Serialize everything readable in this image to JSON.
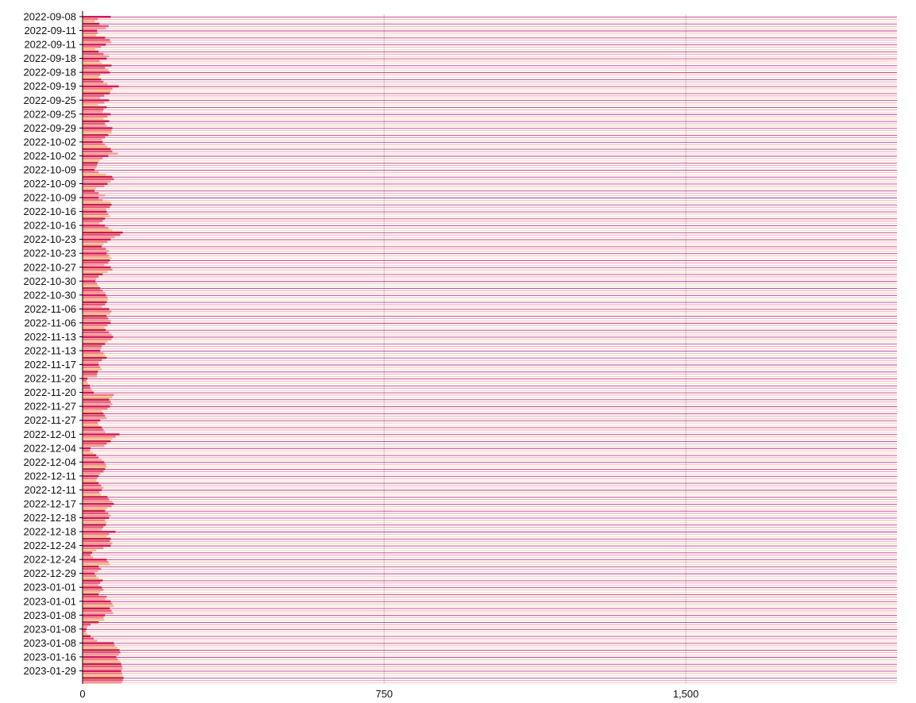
{
  "chart_data": {
    "type": "bar",
    "orientation": "horizontal",
    "title": "",
    "xlabel": "",
    "ylabel": "",
    "xlim": [
      0,
      2025
    ],
    "x_ticks": [
      {
        "value": 0,
        "label": "0"
      },
      {
        "value": 750,
        "label": "750"
      },
      {
        "value": 1500,
        "label": "1,500"
      }
    ],
    "y_tick_labels": [
      "2022-09-08",
      "2022-09-11",
      "2022-09-11",
      "2022-09-18",
      "2022-09-18",
      "2022-09-19",
      "2022-09-25",
      "2022-09-25",
      "2022-09-29",
      "2022-10-02",
      "2022-10-02",
      "2022-10-09",
      "2022-10-09",
      "2022-10-09",
      "2022-10-16",
      "2022-10-16",
      "2022-10-23",
      "2022-10-23",
      "2022-10-27",
      "2022-10-30",
      "2022-10-30",
      "2022-11-06",
      "2022-11-06",
      "2022-11-13",
      "2022-11-13",
      "2022-11-17",
      "2022-11-20",
      "2022-11-20",
      "2022-11-27",
      "2022-11-27",
      "2022-12-01",
      "2022-12-04",
      "2022-12-04",
      "2022-12-11",
      "2022-12-11",
      "2022-12-17",
      "2022-12-18",
      "2022-12-18",
      "2022-12-24",
      "2022-12-24",
      "2022-12-29",
      "2023-01-01",
      "2023-01-01",
      "2023-01-08",
      "2023-01-08",
      "2023-01-08",
      "2023-01-16",
      "2023-01-29"
    ],
    "rows_per_label": 6,
    "values": [
      70,
      38,
      30,
      42,
      65,
      58,
      36,
      38,
      34,
      56,
      68,
      72,
      58,
      46,
      32,
      40,
      52,
      66,
      60,
      42,
      48,
      72,
      56,
      64,
      68,
      44,
      40,
      46,
      52,
      62,
      90,
      74,
      70,
      68,
      54,
      44,
      66,
      54,
      38,
      60,
      52,
      50,
      70,
      62,
      52,
      66,
      56,
      60,
      74,
      72,
      72,
      64,
      56,
      48,
      50,
      56,
      62,
      70,
      74,
      88,
      64,
      50,
      42,
      38,
      36,
      34,
      30,
      40,
      58,
      74,
      78,
      70,
      62,
      54,
      34,
      30,
      40,
      56,
      40,
      50,
      70,
      72,
      68,
      58,
      60,
      64,
      68,
      56,
      50,
      42,
      56,
      64,
      74,
      100,
      94,
      80,
      70,
      62,
      52,
      48,
      58,
      66,
      60,
      66,
      72,
      68,
      64,
      54,
      70,
      74,
      62,
      50,
      40,
      34,
      32,
      36,
      40,
      44,
      50,
      56,
      58,
      62,
      64,
      60,
      56,
      48,
      66,
      72,
      68,
      60,
      64,
      70,
      70,
      62,
      54,
      58,
      66,
      72,
      76,
      72,
      62,
      56,
      48,
      46,
      44,
      52,
      56,
      60,
      48,
      40,
      40,
      44,
      48,
      38,
      36,
      36,
      12,
      10,
      14,
      18,
      20,
      24,
      28,
      78,
      74,
      66,
      70,
      74,
      68,
      62,
      48,
      52,
      56,
      60,
      44,
      38,
      40,
      48,
      52,
      56,
      92,
      82,
      74,
      70,
      60,
      54,
      20,
      18,
      26,
      34,
      40,
      48,
      54,
      58,
      60,
      56,
      52,
      44,
      40,
      36,
      34,
      40,
      46,
      52,
      48,
      42,
      46,
      62,
      66,
      74,
      78,
      72,
      60,
      56,
      64,
      70,
      66,
      56,
      60,
      58,
      52,
      48,
      82,
      66,
      60,
      70,
      68,
      74,
      70,
      52,
      34,
      24,
      20,
      26,
      60,
      64,
      68,
      40,
      46,
      38,
      30,
      34,
      40,
      50,
      44,
      40,
      48,
      52,
      44,
      40,
      60,
      56,
      70,
      74,
      78,
      68,
      72,
      76,
      56,
      52,
      54,
      40,
      20,
      12,
      10,
      8,
      12,
      20,
      28,
      36,
      78,
      80,
      86,
      92,
      94,
      90,
      84,
      88,
      94,
      96,
      98,
      100,
      96,
      98,
      100,
      102,
      100,
      98
    ],
    "palette": [
      "#d4145a",
      "#f37a7a",
      "#f6b88a",
      "#c41e3a",
      "#e8507a",
      "#f49a8a"
    ],
    "baseline_line_color": "#b3126e",
    "grid": true,
    "legend": "none"
  }
}
